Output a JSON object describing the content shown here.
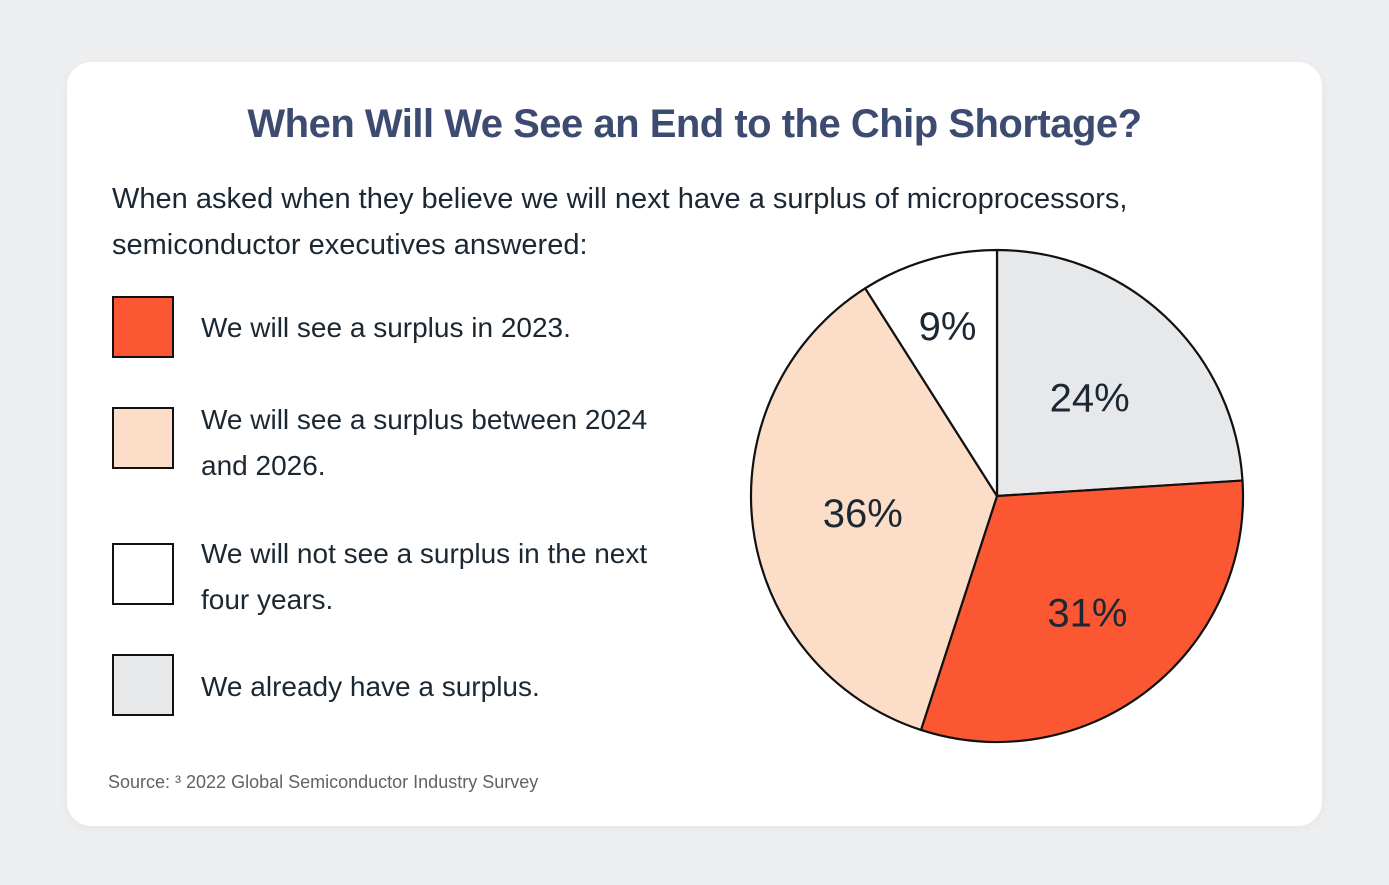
{
  "title": "When Will We See an End to the Chip Shortage?",
  "subtitle": "When asked when they believe we will next have a surplus of microprocessors, semiconductor executives answered:",
  "legend": [
    {
      "label": "We will see a surplus in 2023.",
      "color": "#fb5733"
    },
    {
      "label": "We will see a surplus between 2024 and 2026.",
      "color": "#fcdec8"
    },
    {
      "label": "We will not see a surplus in the next four years.",
      "color": "#ffffff"
    },
    {
      "label": "We already have a surplus.",
      "color": "#e7e8ea"
    }
  ],
  "source": "Source: ³ 2022 Global Semiconductor Industry Survey",
  "chart_data": {
    "type": "pie",
    "title": "When Will We See an End to the Chip Shortage?",
    "start": "12 o'clock, clockwise",
    "slices": [
      {
        "label": "We already have a surplus.",
        "value": 24,
        "display": "24%",
        "color": "#e7e8ea"
      },
      {
        "label": "We will see a surplus in 2023.",
        "value": 31,
        "display": "31%",
        "color": "#fb5733"
      },
      {
        "label": "We will see a surplus between 2024 and 2026.",
        "value": 36,
        "display": "36%",
        "color": "#fcdec8"
      },
      {
        "label": "We will not see a surplus in the next four years.",
        "value": 9,
        "display": "9%",
        "color": "#ffffff"
      }
    ]
  }
}
